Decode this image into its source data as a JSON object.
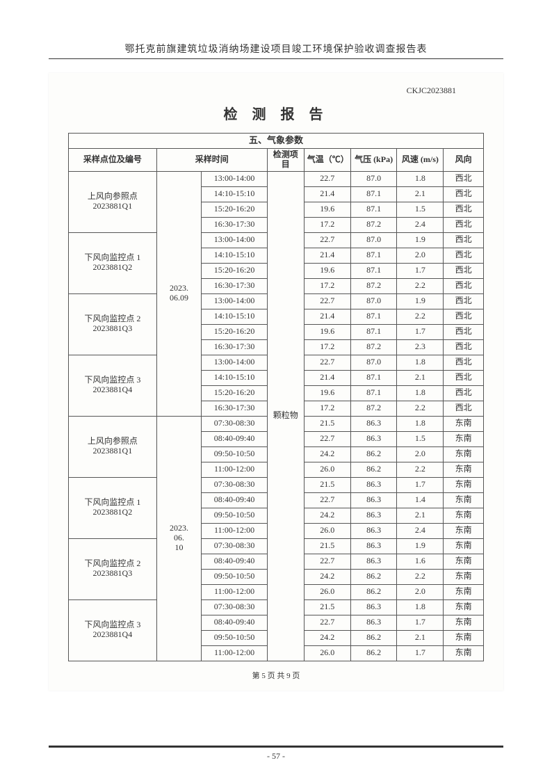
{
  "doc_title": "鄂托克前旗建筑垃圾消纳场建设项目竣工环境保护验收调查报告表",
  "report_id": "CKJC2023881",
  "report_title": "检 测 报 告",
  "section_header": "五、气象参数",
  "headers": {
    "point": "采样点位及编号",
    "time": "采样时间",
    "item": "检测项目",
    "temp": "气温（℃）",
    "pressure": "气压 (kPa)",
    "wind_speed": "风速 (m/s)",
    "wind_dir": "风向"
  },
  "detect_item": "颗粒物",
  "groups": [
    {
      "date": "2023.06.09",
      "points": [
        {
          "name": "上风向参照点 2023881Q1",
          "rows": [
            {
              "t": "13:00-14:00",
              "temp": "22.7",
              "p": "87.0",
              "ws": "1.8",
              "wd": "西北"
            },
            {
              "t": "14:10-15:10",
              "temp": "21.4",
              "p": "87.1",
              "ws": "2.1",
              "wd": "西北"
            },
            {
              "t": "15:20-16:20",
              "temp": "19.6",
              "p": "87.1",
              "ws": "1.5",
              "wd": "西北"
            },
            {
              "t": "16:30-17:30",
              "temp": "17.2",
              "p": "87.2",
              "ws": "2.4",
              "wd": "西北"
            }
          ]
        },
        {
          "name": "下风向监控点 1 2023881Q2",
          "rows": [
            {
              "t": "13:00-14:00",
              "temp": "22.7",
              "p": "87.0",
              "ws": "1.9",
              "wd": "西北"
            },
            {
              "t": "14:10-15:10",
              "temp": "21.4",
              "p": "87.1",
              "ws": "2.0",
              "wd": "西北"
            },
            {
              "t": "15:20-16:20",
              "temp": "19.6",
              "p": "87.1",
              "ws": "1.7",
              "wd": "西北"
            },
            {
              "t": "16:30-17:30",
              "temp": "17.2",
              "p": "87.2",
              "ws": "2.2",
              "wd": "西北"
            }
          ]
        },
        {
          "name": "下风向监控点 2 2023881Q3",
          "rows": [
            {
              "t": "13:00-14:00",
              "temp": "22.7",
              "p": "87.0",
              "ws": "1.9",
              "wd": "西北"
            },
            {
              "t": "14:10-15:10",
              "temp": "21.4",
              "p": "87.1",
              "ws": "2.2",
              "wd": "西北"
            },
            {
              "t": "15:20-16:20",
              "temp": "19.6",
              "p": "87.1",
              "ws": "1.7",
              "wd": "西北"
            },
            {
              "t": "16:30-17:30",
              "temp": "17.2",
              "p": "87.2",
              "ws": "2.3",
              "wd": "西北"
            }
          ]
        },
        {
          "name": "下风向监控点 3 2023881Q4",
          "rows": [
            {
              "t": "13:00-14:00",
              "temp": "22.7",
              "p": "87.0",
              "ws": "1.8",
              "wd": "西北"
            },
            {
              "t": "14:10-15:10",
              "temp": "21.4",
              "p": "87.1",
              "ws": "2.1",
              "wd": "西北"
            },
            {
              "t": "15:20-16:20",
              "temp": "19.6",
              "p": "87.1",
              "ws": "1.8",
              "wd": "西北"
            },
            {
              "t": "16:30-17:30",
              "temp": "17.2",
              "p": "87.2",
              "ws": "2.2",
              "wd": "西北"
            }
          ]
        }
      ]
    },
    {
      "date": "2023.06.10",
      "points": [
        {
          "name": "上风向参照点 2023881Q1",
          "rows": [
            {
              "t": "07:30-08:30",
              "temp": "21.5",
              "p": "86.3",
              "ws": "1.8",
              "wd": "东南"
            },
            {
              "t": "08:40-09:40",
              "temp": "22.7",
              "p": "86.3",
              "ws": "1.5",
              "wd": "东南"
            },
            {
              "t": "09:50-10:50",
              "temp": "24.2",
              "p": "86.2",
              "ws": "2.0",
              "wd": "东南"
            },
            {
              "t": "11:00-12:00",
              "temp": "26.0",
              "p": "86.2",
              "ws": "2.2",
              "wd": "东南"
            }
          ]
        },
        {
          "name": "下风向监控点 1 2023881Q2",
          "rows": [
            {
              "t": "07:30-08:30",
              "temp": "21.5",
              "p": "86.3",
              "ws": "1.7",
              "wd": "东南"
            },
            {
              "t": "08:40-09:40",
              "temp": "22.7",
              "p": "86.3",
              "ws": "1.4",
              "wd": "东南"
            },
            {
              "t": "09:50-10:50",
              "temp": "24.2",
              "p": "86.3",
              "ws": "2.1",
              "wd": "东南"
            },
            {
              "t": "11:00-12:00",
              "temp": "26.0",
              "p": "86.3",
              "ws": "2.4",
              "wd": "东南"
            }
          ]
        },
        {
          "name": "下风向监控点 2 2023881Q3",
          "rows": [
            {
              "t": "07:30-08:30",
              "temp": "21.5",
              "p": "86.3",
              "ws": "1.9",
              "wd": "东南"
            },
            {
              "t": "08:40-09:40",
              "temp": "22.7",
              "p": "86.3",
              "ws": "1.6",
              "wd": "东南"
            },
            {
              "t": "09:50-10:50",
              "temp": "24.2",
              "p": "86.2",
              "ws": "2.2",
              "wd": "东南"
            },
            {
              "t": "11:00-12:00",
              "temp": "26.0",
              "p": "86.2",
              "ws": "2.0",
              "wd": "东南"
            }
          ]
        },
        {
          "name": "下风向监控点 3 2023881Q4",
          "rows": [
            {
              "t": "07:30-08:30",
              "temp": "21.5",
              "p": "86.3",
              "ws": "1.8",
              "wd": "东南"
            },
            {
              "t": "08:40-09:40",
              "temp": "22.7",
              "p": "86.3",
              "ws": "1.7",
              "wd": "东南"
            },
            {
              "t": "09:50-10:50",
              "temp": "24.2",
              "p": "86.2",
              "ws": "2.1",
              "wd": "东南"
            },
            {
              "t": "11:00-12:00",
              "temp": "26.0",
              "p": "86.2",
              "ws": "1.7",
              "wd": "东南"
            }
          ]
        }
      ]
    }
  ],
  "pager": "第 5 页 共 9 页",
  "page_num": "- 57 -"
}
